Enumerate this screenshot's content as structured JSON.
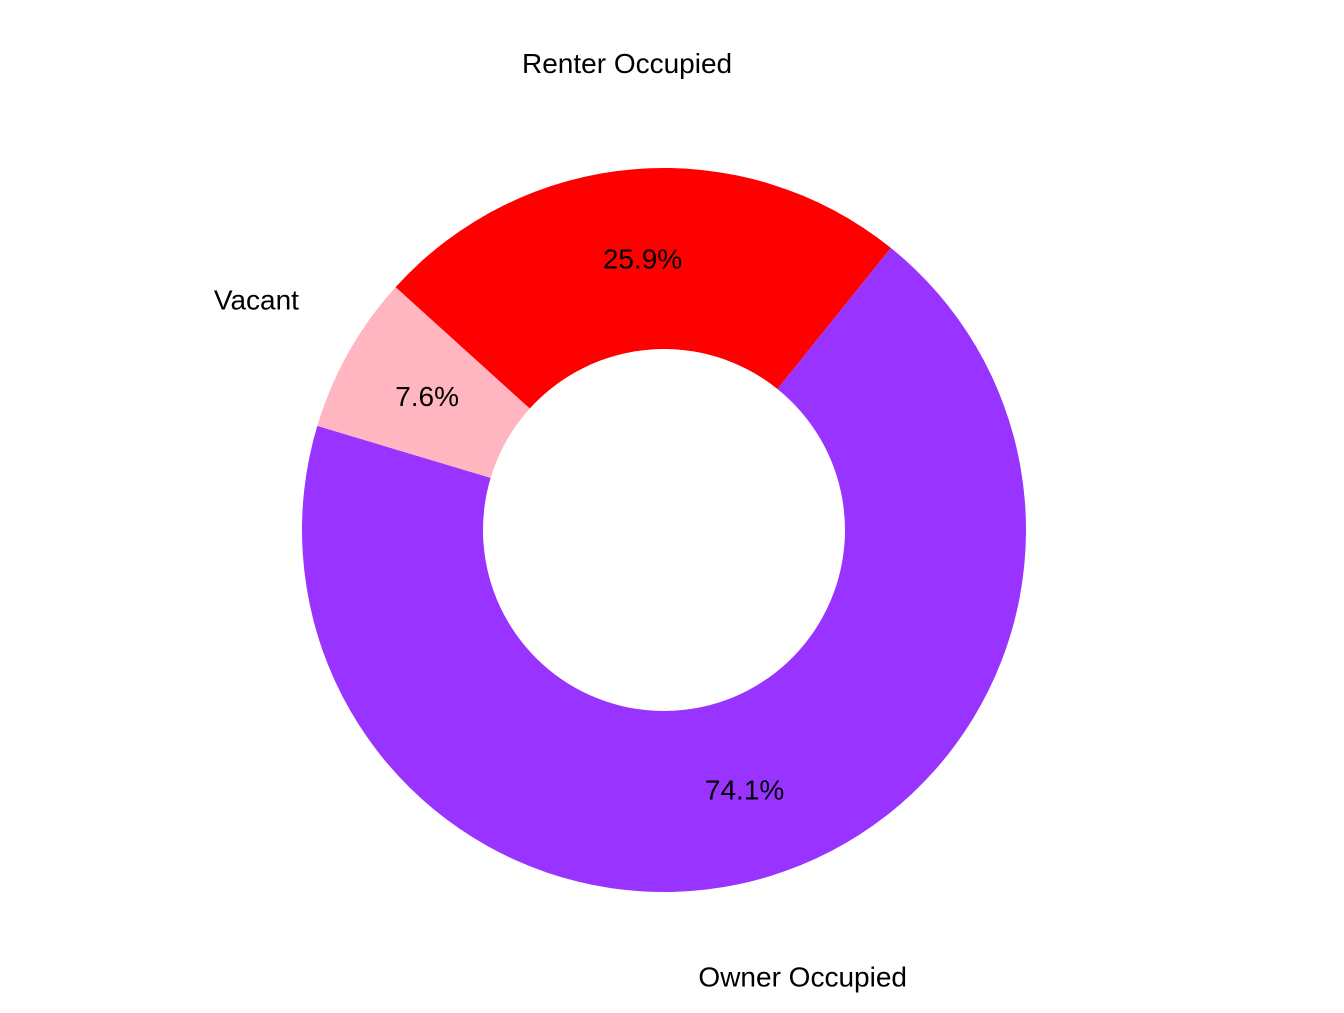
{
  "chart_data": {
    "type": "pie",
    "donut": true,
    "title": "",
    "legend": "none",
    "slices": [
      {
        "label": "Owner Occupied",
        "percent_label": "74.1%",
        "value": 74.1,
        "color": "#9933FF"
      },
      {
        "label": "Vacant",
        "percent_label": "7.6%",
        "value": 7.6,
        "color": "#FFB6C1"
      },
      {
        "label": "Renter Occupied",
        "percent_label": "25.9%",
        "value": 25.9,
        "color": "#FF0000"
      }
    ]
  }
}
